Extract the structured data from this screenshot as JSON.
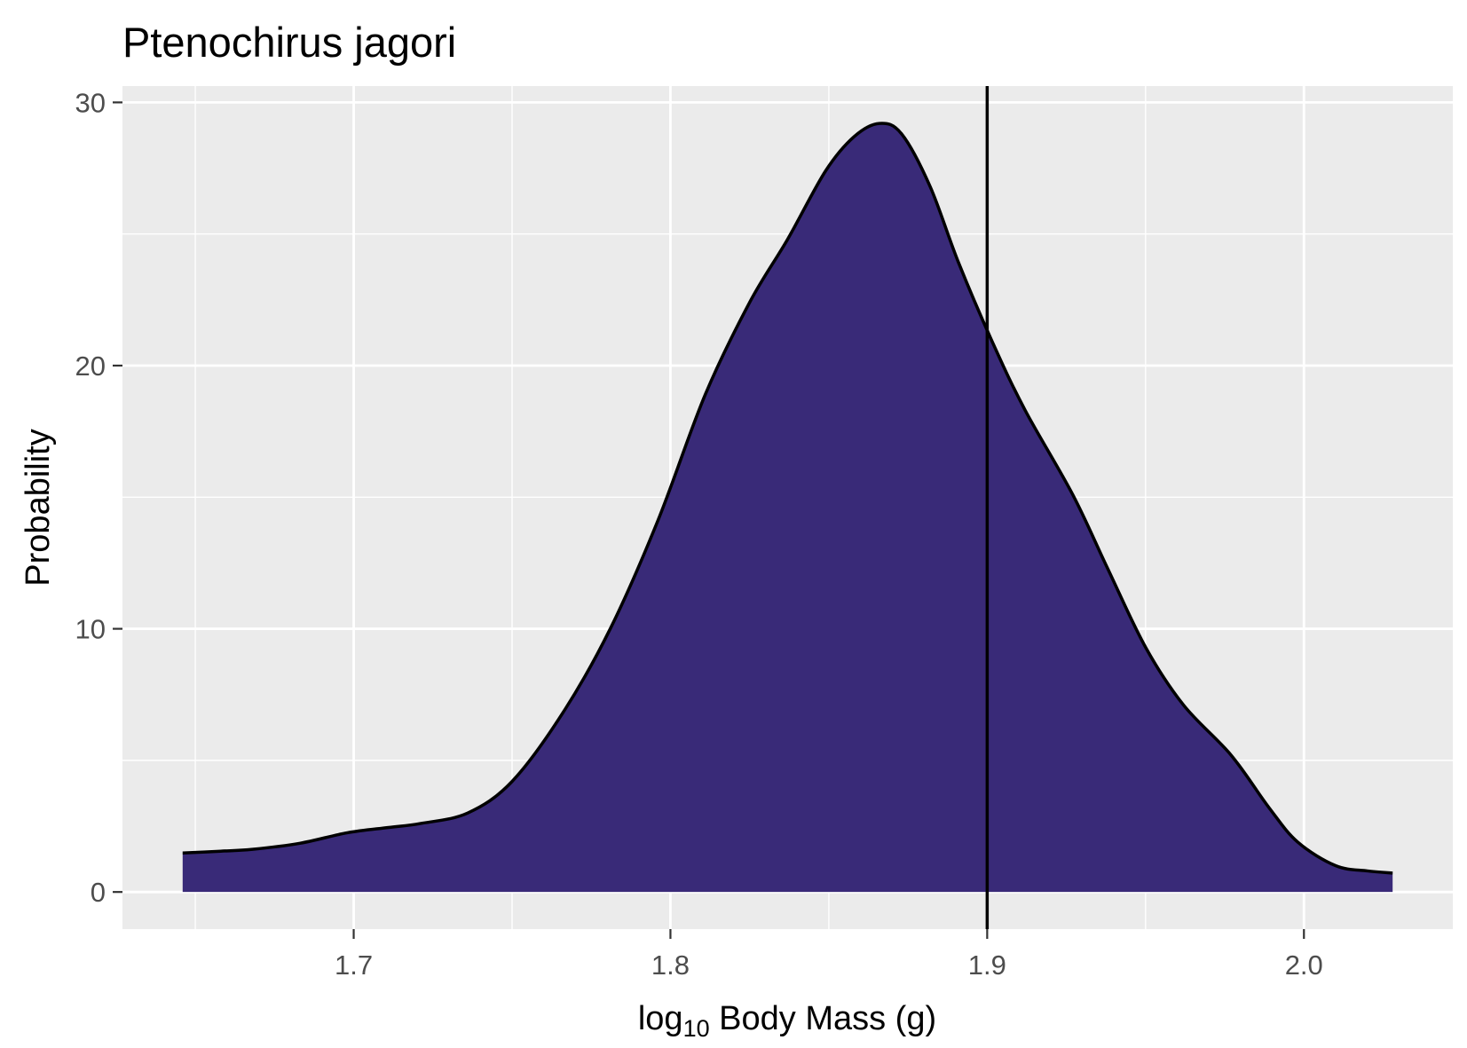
{
  "chart_data": {
    "type": "area",
    "title": "Ptenochirus jagori",
    "xlabel": {
      "base": "log",
      "subscript": "10",
      "rest": " Body Mass (g)"
    },
    "ylabel": "Probability",
    "xlim": [
      1.627,
      2.047
    ],
    "ylim": [
      -1.41,
      30.62
    ],
    "x_ticks": [
      1.7,
      1.8,
      1.9,
      2.0
    ],
    "x_tick_labels": [
      "1.7",
      "1.8",
      "1.9",
      "2.0"
    ],
    "y_ticks": [
      0,
      10,
      20,
      30
    ],
    "y_tick_labels": [
      "0",
      "10",
      "20",
      "30"
    ],
    "x_minor_ticks": [
      1.65,
      1.75,
      1.85,
      1.95
    ],
    "y_minor_ticks": [
      5,
      15,
      25
    ],
    "grid": true,
    "legend": "none",
    "panel_background": "#EBEBEB",
    "grid_color": "#FFFFFF",
    "reference_line": {
      "orientation": "vertical",
      "x": 1.9,
      "color": "#000000"
    },
    "series": [
      {
        "fill": "#392A78",
        "outline": "#000000",
        "x": [
          1.646,
          1.658,
          1.668,
          1.683,
          1.698,
          1.711,
          1.721,
          1.736,
          1.75,
          1.766,
          1.781,
          1.796,
          1.811,
          1.825,
          1.837,
          1.849,
          1.858,
          1.866,
          1.873,
          1.882,
          1.891,
          1.902,
          1.912,
          1.927,
          1.938,
          1.95,
          1.962,
          1.977,
          1.989,
          1.998,
          2.01,
          2.02,
          2.028
        ],
        "y": [
          1.48,
          1.55,
          1.62,
          1.85,
          2.25,
          2.45,
          2.6,
          3.0,
          4.2,
          6.8,
          10.0,
          14.1,
          18.9,
          22.4,
          24.8,
          27.4,
          28.7,
          29.2,
          28.8,
          26.8,
          23.9,
          20.8,
          18.3,
          15.1,
          12.3,
          9.3,
          7.1,
          5.2,
          3.2,
          1.9,
          1.0,
          0.8,
          0.72
        ]
      }
    ]
  }
}
